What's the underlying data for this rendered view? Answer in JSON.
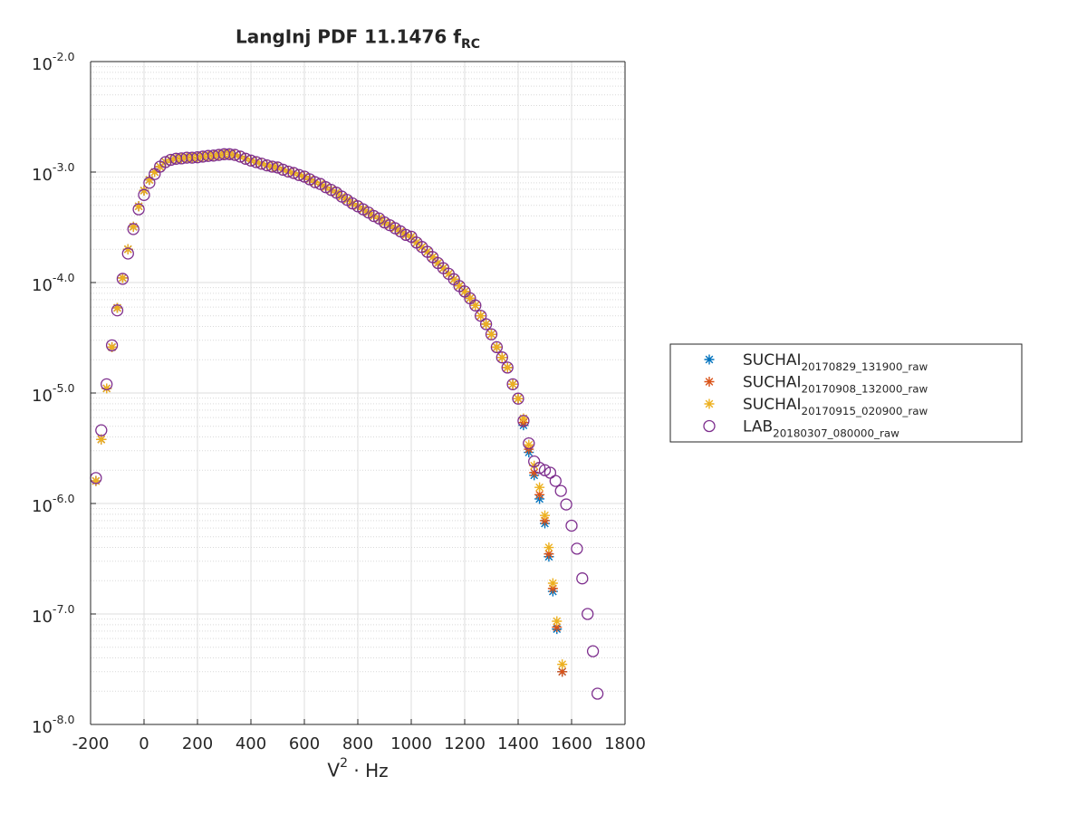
{
  "chart_data": {
    "type": "scatter",
    "title": "LangInj PDF 11.1476 f_RC",
    "x_label": "V^2 · Hz",
    "xlim": [
      -200,
      1800
    ],
    "xticks": [
      -200,
      0,
      200,
      400,
      600,
      800,
      1000,
      1200,
      1400,
      1600,
      1800
    ],
    "ylim": [
      1e-08,
      0.01
    ],
    "yscale": "log",
    "yticks": [
      {
        "value": 1e-08,
        "label": "10^-8.0"
      },
      {
        "value": 1e-07,
        "label": "10^-7.0"
      },
      {
        "value": 1e-06,
        "label": "10^-6.0"
      },
      {
        "value": 1e-05,
        "label": "10^-5.0"
      },
      {
        "value": 0.0001,
        "label": "10^-4.0"
      },
      {
        "value": 0.001,
        "label": "10^-3.0"
      },
      {
        "value": 0.01,
        "label": "10^-2.0"
      }
    ],
    "grid": true,
    "minor_grid": true,
    "legend": "east-outside",
    "series": [
      {
        "name": "SUCHAI_20170829_131900_raw",
        "color": "#0072BD",
        "marker": "star",
        "x": [
          -180,
          -160,
          -140,
          -120,
          -100,
          -80,
          -60,
          -40,
          -20,
          0,
          20,
          40,
          60,
          80,
          100,
          120,
          140,
          160,
          180,
          200,
          220,
          240,
          260,
          280,
          300,
          320,
          340,
          360,
          380,
          400,
          420,
          440,
          460,
          480,
          500,
          520,
          540,
          560,
          580,
          600,
          620,
          640,
          660,
          680,
          700,
          720,
          740,
          760,
          780,
          800,
          820,
          840,
          860,
          880,
          900,
          920,
          940,
          960,
          980,
          1000,
          1020,
          1040,
          1060,
          1080,
          1100,
          1120,
          1140,
          1160,
          1180,
          1200,
          1220,
          1240,
          1260,
          1280,
          1300,
          1320,
          1340,
          1360,
          1380,
          1400,
          1420,
          1440,
          1460,
          1480,
          1500,
          1515,
          1530,
          1545,
          1565
        ],
        "values": [
          1.6e-06,
          3.8e-06,
          1.1e-05,
          2.6e-05,
          5.9e-05,
          0.00011,
          0.0002,
          0.00032,
          0.00049,
          0.00068,
          0.00085,
          0.001,
          0.00112,
          0.00123,
          0.00129,
          0.00132,
          0.00133,
          0.00135,
          0.00135,
          0.00136,
          0.00138,
          0.0014,
          0.00141,
          0.00143,
          0.00145,
          0.00145,
          0.00143,
          0.00138,
          0.00132,
          0.00127,
          0.00123,
          0.00119,
          0.00115,
          0.00112,
          0.0011,
          0.00105,
          0.00101,
          0.00098,
          0.00094,
          0.00091,
          0.00086,
          0.00081,
          0.00078,
          0.00073,
          0.00069,
          0.00065,
          0.0006,
          0.00056,
          0.00052,
          0.00049,
          0.00046,
          0.00043,
          0.0004,
          0.00038,
          0.00035,
          0.00033,
          0.00031,
          0.00029,
          0.00027,
          0.00026,
          0.00023,
          0.00021,
          0.00019,
          0.00017,
          0.00015,
          0.000135,
          0.00012,
          0.000107,
          9.3e-05,
          8.3e-05,
          7.2e-05,
          6.2e-05,
          5e-05,
          4.2e-05,
          3.4e-05,
          2.6e-05,
          2.1e-05,
          1.7e-05,
          1.2e-05,
          8.9e-06,
          5.1e-06,
          2.9e-06,
          1.8e-06,
          1.1e-06,
          6.6e-07,
          3.3e-07,
          1.6e-07,
          7.3e-08,
          3e-08
        ]
      },
      {
        "name": "SUCHAI_20170908_132000_raw",
        "color": "#D95319",
        "marker": "star",
        "x": [
          -180,
          -160,
          -140,
          -120,
          -100,
          -80,
          -60,
          -40,
          -20,
          0,
          20,
          40,
          60,
          80,
          100,
          120,
          140,
          160,
          180,
          200,
          220,
          240,
          260,
          280,
          300,
          320,
          340,
          360,
          380,
          400,
          420,
          440,
          460,
          480,
          500,
          520,
          540,
          560,
          580,
          600,
          620,
          640,
          660,
          680,
          700,
          720,
          740,
          760,
          780,
          800,
          820,
          840,
          860,
          880,
          900,
          920,
          940,
          960,
          980,
          1000,
          1020,
          1040,
          1060,
          1080,
          1100,
          1120,
          1140,
          1160,
          1180,
          1200,
          1220,
          1240,
          1260,
          1280,
          1300,
          1320,
          1340,
          1360,
          1380,
          1400,
          1420,
          1440,
          1460,
          1480,
          1500,
          1515,
          1530,
          1545,
          1565
        ],
        "values": [
          1.6e-06,
          3.8e-06,
          1.1e-05,
          2.6e-05,
          5.9e-05,
          0.00011,
          0.0002,
          0.00032,
          0.00049,
          0.00068,
          0.00085,
          0.001,
          0.00112,
          0.00123,
          0.00129,
          0.00132,
          0.00133,
          0.00135,
          0.00135,
          0.00136,
          0.00138,
          0.0014,
          0.00141,
          0.00143,
          0.00145,
          0.00145,
          0.00143,
          0.00138,
          0.00132,
          0.00127,
          0.00123,
          0.00119,
          0.00115,
          0.00112,
          0.0011,
          0.00105,
          0.00101,
          0.00098,
          0.00094,
          0.00091,
          0.00086,
          0.00081,
          0.00078,
          0.00073,
          0.00069,
          0.00065,
          0.0006,
          0.00056,
          0.00052,
          0.00049,
          0.00046,
          0.00043,
          0.0004,
          0.00038,
          0.00035,
          0.00033,
          0.00031,
          0.00029,
          0.00027,
          0.00026,
          0.00023,
          0.00021,
          0.00019,
          0.00017,
          0.00015,
          0.000135,
          0.00012,
          0.000107,
          9.3e-05,
          8.3e-05,
          7.2e-05,
          6.2e-05,
          5e-05,
          4.2e-05,
          3.4e-05,
          2.6e-05,
          2.1e-05,
          1.7e-05,
          1.2e-05,
          8.9e-06,
          5.4e-06,
          3.1e-06,
          1.9e-06,
          1.2e-06,
          7e-07,
          3.5e-07,
          1.7e-07,
          7.6e-08,
          3e-08
        ]
      },
      {
        "name": "SUCHAI_20170915_020900_raw",
        "color": "#EDB120",
        "marker": "star",
        "x": [
          -180,
          -160,
          -140,
          -120,
          -100,
          -80,
          -60,
          -40,
          -20,
          0,
          20,
          40,
          60,
          80,
          100,
          120,
          140,
          160,
          180,
          200,
          220,
          240,
          260,
          280,
          300,
          320,
          340,
          360,
          380,
          400,
          420,
          440,
          460,
          480,
          500,
          520,
          540,
          560,
          580,
          600,
          620,
          640,
          660,
          680,
          700,
          720,
          740,
          760,
          780,
          800,
          820,
          840,
          860,
          880,
          900,
          920,
          940,
          960,
          980,
          1000,
          1020,
          1040,
          1060,
          1080,
          1100,
          1120,
          1140,
          1160,
          1180,
          1200,
          1220,
          1240,
          1260,
          1280,
          1300,
          1320,
          1340,
          1360,
          1380,
          1400,
          1420,
          1440,
          1460,
          1480,
          1500,
          1515,
          1530,
          1545,
          1565
        ],
        "values": [
          1.6e-06,
          3.8e-06,
          1.1e-05,
          2.6e-05,
          5.9e-05,
          0.00011,
          0.0002,
          0.00032,
          0.00049,
          0.00068,
          0.00085,
          0.001,
          0.00112,
          0.00123,
          0.00129,
          0.00132,
          0.00133,
          0.00135,
          0.00135,
          0.00136,
          0.00138,
          0.0014,
          0.00141,
          0.00143,
          0.00145,
          0.00145,
          0.00143,
          0.00138,
          0.00132,
          0.00127,
          0.00123,
          0.00119,
          0.00115,
          0.00112,
          0.0011,
          0.00105,
          0.00101,
          0.00098,
          0.00094,
          0.00091,
          0.00086,
          0.00081,
          0.00078,
          0.00073,
          0.00069,
          0.00065,
          0.0006,
          0.00056,
          0.00052,
          0.00049,
          0.00046,
          0.00043,
          0.0004,
          0.00038,
          0.00035,
          0.00033,
          0.00031,
          0.00029,
          0.00027,
          0.00026,
          0.00023,
          0.00021,
          0.00019,
          0.00017,
          0.00015,
          0.000135,
          0.00012,
          0.000107,
          9.3e-05,
          8.3e-05,
          7.2e-05,
          6.2e-05,
          5e-05,
          4.2e-05,
          3.4e-05,
          2.6e-05,
          2.1e-05,
          1.7e-05,
          1.2e-05,
          8.9e-06,
          5.9e-06,
          3.4e-06,
          2.2e-06,
          1.4e-06,
          7.8e-07,
          4e-07,
          1.9e-07,
          8.6e-08,
          3.5e-08
        ]
      },
      {
        "name": "LAB_20180307_080000_raw",
        "color": "#7E2F8E",
        "marker": "circle",
        "x": [
          -180,
          -160,
          -140,
          -120,
          -100,
          -80,
          -60,
          -40,
          -20,
          0,
          20,
          40,
          60,
          80,
          100,
          120,
          140,
          160,
          180,
          200,
          220,
          240,
          260,
          280,
          300,
          320,
          340,
          360,
          380,
          400,
          420,
          440,
          460,
          480,
          500,
          520,
          540,
          560,
          580,
          600,
          620,
          640,
          660,
          680,
          700,
          720,
          740,
          760,
          780,
          800,
          820,
          840,
          860,
          880,
          900,
          920,
          940,
          960,
          980,
          1000,
          1020,
          1040,
          1060,
          1080,
          1100,
          1120,
          1140,
          1160,
          1180,
          1200,
          1220,
          1240,
          1260,
          1280,
          1300,
          1320,
          1340,
          1360,
          1380,
          1400,
          1420,
          1440,
          1460,
          1480,
          1500,
          1520,
          1540,
          1560,
          1580,
          1600,
          1620,
          1640,
          1660,
          1680,
          1697
        ],
        "values": [
          1.7e-06,
          4.6e-06,
          1.2e-05,
          2.7e-05,
          5.6e-05,
          0.000108,
          0.000183,
          0.000305,
          0.00046,
          0.00062,
          0.0008,
          0.00096,
          0.00112,
          0.00123,
          0.00129,
          0.00132,
          0.00133,
          0.00135,
          0.00135,
          0.00136,
          0.00138,
          0.0014,
          0.00141,
          0.00143,
          0.00145,
          0.00145,
          0.00143,
          0.00138,
          0.00132,
          0.00127,
          0.00123,
          0.00119,
          0.00115,
          0.00112,
          0.0011,
          0.00105,
          0.00101,
          0.00098,
          0.00094,
          0.00091,
          0.00086,
          0.00081,
          0.00078,
          0.00073,
          0.00069,
          0.00065,
          0.0006,
          0.00056,
          0.00052,
          0.00049,
          0.00046,
          0.00043,
          0.0004,
          0.00038,
          0.00035,
          0.00033,
          0.00031,
          0.00029,
          0.00027,
          0.00026,
          0.00023,
          0.00021,
          0.00019,
          0.00017,
          0.00015,
          0.000135,
          0.00012,
          0.000107,
          9.3e-05,
          8.3e-05,
          7.2e-05,
          6.2e-05,
          5e-05,
          4.2e-05,
          3.4e-05,
          2.6e-05,
          2.1e-05,
          1.7e-05,
          1.2e-05,
          8.9e-06,
          5.6e-06,
          3.5e-06,
          2.4e-06,
          2.1e-06,
          2e-06,
          1.9e-06,
          1.6e-06,
          1.3e-06,
          9.8e-07,
          6.3e-07,
          3.9e-07,
          2.1e-07,
          1e-07,
          4.6e-08,
          1.9e-08
        ]
      }
    ]
  }
}
